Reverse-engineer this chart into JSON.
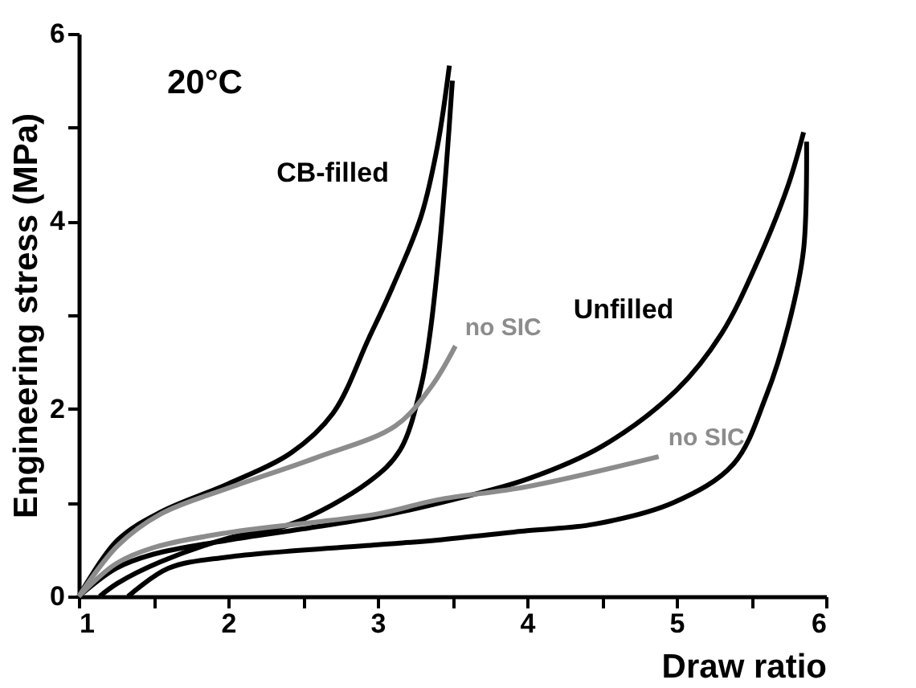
{
  "chart_data": {
    "type": "line",
    "xlabel": "Draw ratio",
    "ylabel": "Engineering stress (MPa)",
    "xlim": [
      1,
      6
    ],
    "ylim": [
      0,
      6
    ],
    "xticks": [
      1,
      {
        "value": 1.5,
        "label": null
      },
      2,
      {
        "value": 2.5,
        "label": null
      },
      3,
      {
        "value": 3.5,
        "label": null
      },
      4,
      {
        "value": 4.5,
        "label": null
      },
      5,
      {
        "value": 5.5,
        "label": null
      },
      6
    ],
    "yticks": [
      0,
      {
        "value": 1,
        "label": null
      },
      2,
      {
        "value": 3,
        "label": null
      },
      4,
      {
        "value": 5,
        "label": null
      },
      6
    ],
    "grid": false,
    "legend": false,
    "line_style": "solid",
    "marker": "none",
    "series": [
      {
        "color": "#000000",
        "x": [
          1.0,
          1.26,
          1.55,
          2.0,
          2.42,
          2.7,
          2.94,
          3.1,
          3.29,
          3.4,
          3.48
        ],
        "values": [
          0.0,
          0.6,
          0.9,
          1.2,
          1.53,
          1.95,
          2.75,
          3.3,
          4.05,
          4.8,
          5.66
        ]
      },
      {
        "color": "#000000",
        "x": [
          3.5,
          3.46,
          3.41,
          3.35,
          3.29,
          3.15,
          2.94,
          2.42,
          2.0,
          1.55,
          1.26,
          1.14
        ],
        "values": [
          5.5,
          4.6,
          3.66,
          2.8,
          2.24,
          1.56,
          1.22,
          0.77,
          0.62,
          0.37,
          0.14,
          0.0
        ]
      },
      {
        "color": "#000000",
        "x": [
          1.0,
          1.25,
          1.5,
          2.0,
          2.5,
          3.0,
          3.5,
          4.0,
          4.5,
          5.0,
          5.3,
          5.55,
          5.75,
          5.85
        ],
        "values": [
          0.0,
          0.3,
          0.45,
          0.6,
          0.72,
          0.85,
          1.03,
          1.25,
          1.6,
          2.2,
          2.8,
          3.6,
          4.4,
          4.95
        ]
      },
      {
        "color": "#000000",
        "x": [
          5.87,
          5.85,
          5.75,
          5.6,
          5.38,
          4.98,
          4.45,
          4.0,
          3.4,
          3.0,
          2.0,
          1.6,
          1.33
        ],
        "values": [
          4.85,
          3.7,
          2.9,
          2.14,
          1.41,
          1.0,
          0.77,
          0.7,
          0.6,
          0.55,
          0.42,
          0.3,
          0.0
        ]
      },
      {
        "name": "no SIC",
        "color": "#8c8c8c",
        "x": [
          1.0,
          1.26,
          1.55,
          2.01,
          2.59,
          3.12,
          3.36,
          3.52
        ],
        "values": [
          0.0,
          0.54,
          0.88,
          1.16,
          1.48,
          1.82,
          2.24,
          2.67
        ]
      },
      {
        "name": "no SIC",
        "color": "#8c8c8c",
        "x": [
          1.0,
          1.25,
          1.5,
          2.0,
          3.0,
          3.4,
          4.0,
          4.88
        ],
        "values": [
          0.0,
          0.35,
          0.52,
          0.68,
          0.88,
          1.03,
          1.17,
          1.49
        ]
      }
    ],
    "annotations": [
      "20°C",
      "CB-filled",
      "Unfilled"
    ]
  }
}
